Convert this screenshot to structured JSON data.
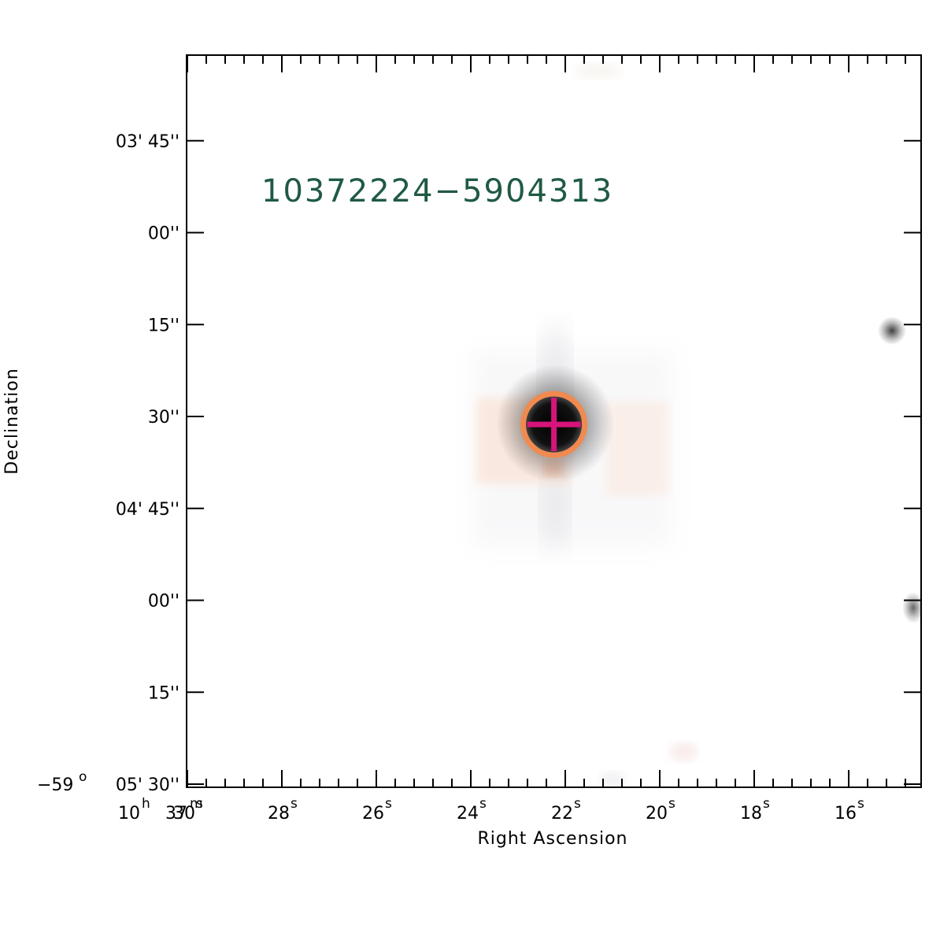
{
  "chart_data": {
    "type": "image",
    "source_name": "10372224−5904313",
    "xlabel": "Right Ascension",
    "ylabel": "Declination",
    "grid": false,
    "x_ticks": [
      {
        "major": "10",
        "major_unit": "h",
        "mid": "37",
        "mid_unit": "m",
        "minor": "30",
        "minor_unit": "s"
      },
      {
        "minor": "28",
        "minor_unit": "s"
      },
      {
        "minor": "26",
        "minor_unit": "s"
      },
      {
        "minor": "24",
        "minor_unit": "s"
      },
      {
        "minor": "22",
        "minor_unit": "s"
      },
      {
        "minor": "20",
        "minor_unit": "s"
      },
      {
        "minor": "18",
        "minor_unit": "s"
      },
      {
        "minor": "16",
        "minor_unit": "s"
      }
    ],
    "y_ticks": [
      {
        "deg": "−59",
        "deg_unit": "o",
        "label": "05' 30''"
      },
      {
        "label": "15''"
      },
      {
        "label": "00''"
      },
      {
        "label": "04' 45''"
      },
      {
        "label": "30''"
      },
      {
        "label": "15''"
      },
      {
        "label": "00''"
      },
      {
        "label": "03' 45''"
      }
    ],
    "target": {
      "ra_s": 22.24,
      "dec_arcsec": 31.3
    },
    "colors": {
      "label": "#1f5a43",
      "circle": "#f08a50",
      "cross": "#d6147a",
      "star": "#000000",
      "axes": "#000000"
    }
  }
}
